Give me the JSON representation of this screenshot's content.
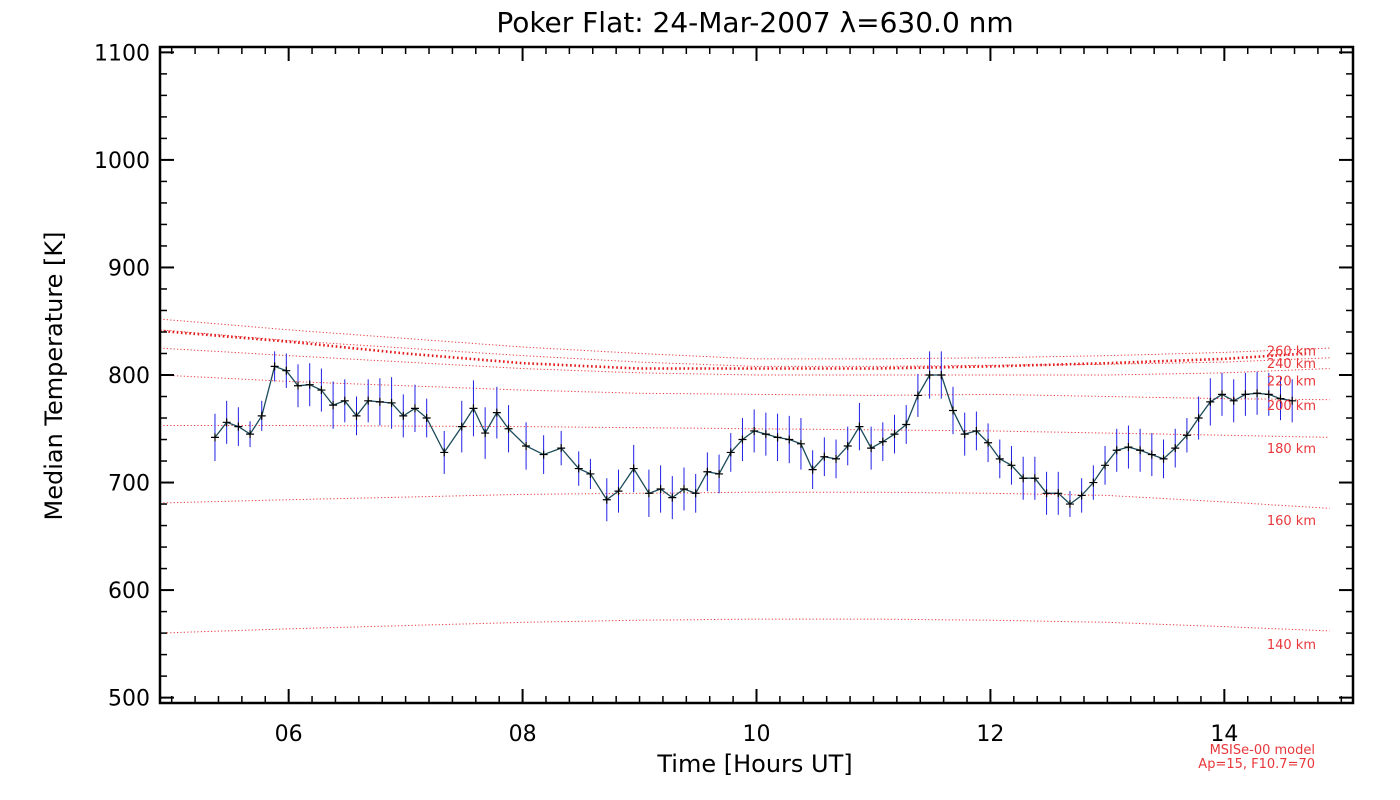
{
  "chart_data": {
    "type": "line",
    "title": "Poker Flat: 24-Mar-2007 λ=630.0 nm",
    "xlabel": "Time [Hours UT]",
    "ylabel": "Median Temperature [K]",
    "xlim": [
      4.9,
      15.1
    ],
    "ylim": [
      495,
      1105
    ],
    "x_ticks": [
      6,
      8,
      10,
      12,
      14
    ],
    "x_tick_labels": [
      "06",
      "08",
      "10",
      "12",
      "14"
    ],
    "y_ticks": [
      500,
      600,
      700,
      800,
      900,
      1000,
      1100
    ],
    "y_tick_labels": [
      "500",
      "600",
      "700",
      "800",
      "900",
      "1000",
      "1100"
    ],
    "colors": {
      "data_line": "#1a4a5a",
      "error_bars": "#1f1fe6",
      "marker": "#000000",
      "model": "#e8373b",
      "model_exosphere": "#e31a1c"
    },
    "series": [
      {
        "name": "Median Temperature",
        "x": [
          5.37,
          5.47,
          5.57,
          5.67,
          5.77,
          5.88,
          5.98,
          6.08,
          6.18,
          6.28,
          6.38,
          6.48,
          6.58,
          6.68,
          6.78,
          6.88,
          6.98,
          7.08,
          7.18,
          7.33,
          7.48,
          7.58,
          7.68,
          7.78,
          7.88,
          8.03,
          8.18,
          8.33,
          8.48,
          8.58,
          8.72,
          8.82,
          8.95,
          9.08,
          9.18,
          9.28,
          9.38,
          9.48,
          9.58,
          9.68,
          9.78,
          9.88,
          9.98,
          10.08,
          10.18,
          10.28,
          10.38,
          10.48,
          10.58,
          10.68,
          10.78,
          10.88,
          10.98,
          11.08,
          11.18,
          11.28,
          11.38,
          11.48,
          11.58,
          11.68,
          11.78,
          11.88,
          11.98,
          12.08,
          12.18,
          12.28,
          12.38,
          12.48,
          12.58,
          12.68,
          12.78,
          12.88,
          12.98,
          13.08,
          13.18,
          13.28,
          13.38,
          13.48,
          13.58,
          13.68,
          13.78,
          13.88,
          13.98,
          14.08,
          14.18,
          14.28,
          14.38,
          14.48,
          14.58
        ],
        "y": [
          742,
          756,
          752,
          745,
          762,
          808,
          804,
          790,
          791,
          786,
          772,
          776,
          762,
          776,
          775,
          774,
          762,
          769,
          760,
          728,
          752,
          769,
          746,
          765,
          750,
          734,
          726,
          732,
          713,
          708,
          684,
          692,
          713,
          690,
          694,
          686,
          694,
          690,
          710,
          708,
          728,
          740,
          748,
          745,
          742,
          740,
          736,
          712,
          724,
          722,
          734,
          752,
          732,
          738,
          745,
          754,
          781,
          800,
          800,
          767,
          745,
          748,
          737,
          722,
          716,
          704,
          704,
          690,
          690,
          680,
          688,
          700,
          716,
          730,
          733,
          730,
          726,
          722,
          732,
          744,
          760,
          775,
          782,
          776,
          782,
          783,
          782,
          778,
          776
        ],
        "error": [
          22,
          20,
          18,
          12,
          14,
          14,
          16,
          20,
          20,
          20,
          22,
          20,
          18,
          20,
          22,
          24,
          20,
          22,
          18,
          20,
          24,
          26,
          24,
          24,
          22,
          22,
          18,
          16,
          16,
          14,
          20,
          20,
          22,
          22,
          22,
          20,
          20,
          18,
          18,
          18,
          18,
          20,
          20,
          20,
          22,
          22,
          24,
          18,
          18,
          18,
          18,
          22,
          20,
          18,
          18,
          18,
          20,
          22,
          22,
          22,
          20,
          18,
          18,
          18,
          18,
          20,
          20,
          20,
          20,
          12,
          16,
          16,
          18,
          20,
          20,
          20,
          20,
          18,
          18,
          16,
          20,
          22,
          20,
          20,
          20,
          20,
          20,
          20,
          20
        ]
      }
    ],
    "model_curves": [
      {
        "altitude_label": "140 km",
        "x": [
          4.9,
          6,
          8,
          9,
          10,
          11,
          12,
          13,
          14,
          14.9
        ],
        "y": [
          560,
          564,
          570,
          572,
          573,
          573,
          572,
          570,
          566,
          562
        ]
      },
      {
        "altitude_label": "160 km",
        "x": [
          4.9,
          6,
          8,
          9,
          10,
          11,
          12,
          13,
          14,
          14.9
        ],
        "y": [
          681,
          684,
          689,
          690,
          691,
          691,
          690,
          688,
          682,
          676
        ]
      },
      {
        "altitude_label": "180 km",
        "x": [
          4.9,
          6,
          8,
          9,
          10,
          11,
          12,
          13,
          14,
          14.9
        ],
        "y": [
          753,
          753,
          752,
          751,
          750,
          749,
          748,
          746,
          744,
          742
        ]
      },
      {
        "altitude_label": "200 km",
        "x": [
          4.9,
          6,
          8,
          9,
          10,
          11,
          12,
          13,
          14,
          14.9
        ],
        "y": [
          800,
          794,
          786,
          783,
          782,
          781,
          782,
          780,
          778,
          777
        ]
      },
      {
        "altitude_label": "220 km",
        "x": [
          4.9,
          6,
          8,
          9,
          10,
          11,
          12,
          13,
          14,
          14.9
        ],
        "y": [
          825,
          818,
          806,
          802,
          800,
          800,
          800,
          800,
          802,
          806
        ]
      },
      {
        "altitude_label": "240 km",
        "x": [
          4.9,
          6,
          8,
          9,
          10,
          11,
          12,
          13,
          14,
          14.9
        ],
        "y": [
          842,
          832,
          818,
          812,
          808,
          808,
          809,
          810,
          812,
          816
        ]
      },
      {
        "altitude_label": "260 km",
        "x": [
          4.9,
          6,
          8,
          9,
          10,
          11,
          12,
          13,
          14,
          14.9
        ],
        "y": [
          852,
          842,
          826,
          820,
          815,
          815,
          816,
          818,
          821,
          825
        ]
      }
    ],
    "model_exosphere": {
      "x": [
        4.9,
        6,
        7,
        8,
        9,
        10,
        11,
        12,
        13,
        14,
        14.7
      ],
      "y": [
        841,
        831,
        820,
        811,
        806,
        806,
        806,
        808,
        811,
        815,
        820
      ]
    },
    "altitude_labels": [
      {
        "text": "260 km",
        "temp": 823
      },
      {
        "text": "240 km",
        "temp": 811
      },
      {
        "text": "220 km",
        "temp": 795
      },
      {
        "text": "200 km",
        "temp": 772
      },
      {
        "text": "180 km",
        "temp": 732
      },
      {
        "text": "160 km",
        "temp": 665
      },
      {
        "text": "140 km",
        "temp": 550
      }
    ],
    "annotations": [
      "MSISe-00 model",
      "Ap=15, F10.7=70"
    ]
  }
}
